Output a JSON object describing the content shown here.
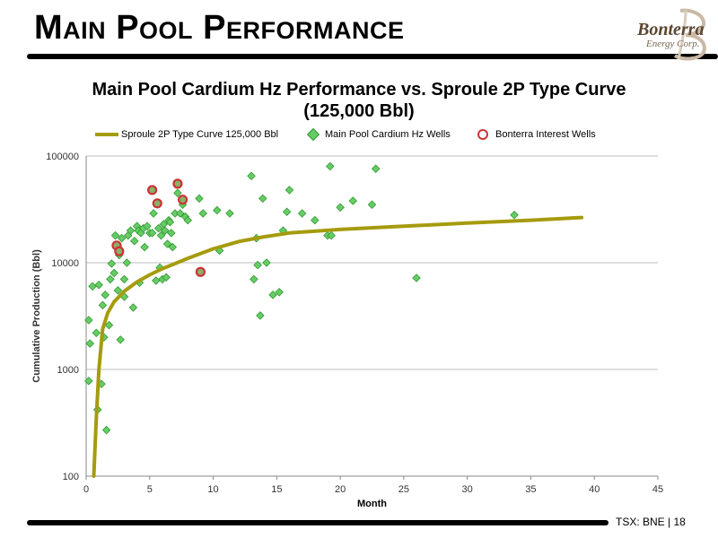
{
  "slide": {
    "title": "Main Pool Performance",
    "logo_word": "Bonterra",
    "logo_sub": "Energy Corp.",
    "footer_ticker": "TSX: BNE",
    "footer_sep": "|",
    "page_number": "18"
  },
  "chart_data": {
    "type": "scatter",
    "title": "Main Pool Cardium Hz Performance vs. Sproule 2P Type Curve (125,000 Bbl)",
    "xlabel": "Month",
    "ylabel": "Cumulative Production (Bbl)",
    "xlim": [
      0,
      45
    ],
    "ylim": [
      100,
      100000
    ],
    "y_scale": "log",
    "x_ticks": [
      0,
      5,
      10,
      15,
      20,
      25,
      30,
      35,
      40,
      45
    ],
    "y_ticks": [
      100,
      1000,
      10000,
      100000
    ],
    "grid": "horizontal",
    "legend_position": "top",
    "colors": {
      "type_curve": "#a59b0e",
      "wells_fill": "#66cc66",
      "wells_edge": "#339933",
      "interest_edge": "#cc3333",
      "interest_fill": "#8ab06a"
    },
    "series": [
      {
        "name": "Sproule 2P Type Curve 125,000 Bbl",
        "kind": "line",
        "x": [
          0.6,
          0.8,
          1.0,
          1.3,
          1.7,
          2.2,
          3,
          4,
          5,
          6,
          7,
          8,
          10,
          12,
          14,
          16,
          20,
          25,
          30,
          35,
          39
        ],
        "y": [
          100,
          350,
          1000,
          2400,
          3400,
          4300,
          5400,
          6600,
          7700,
          8800,
          9800,
          11000,
          13500,
          15800,
          17500,
          19000,
          20500,
          22000,
          23500,
          25000,
          26500
        ]
      },
      {
        "name": "Main Pool Cardium Hz Wells",
        "kind": "scatter",
        "x": [
          0.2,
          0.2,
          0.3,
          0.5,
          0.8,
          0.9,
          1.0,
          1.2,
          1.3,
          1.4,
          1.5,
          1.6,
          1.8,
          1.9,
          2.0,
          2.2,
          2.3,
          2.5,
          2.6,
          2.7,
          2.8,
          3.0,
          3.0,
          3.2,
          3.3,
          3.5,
          3.7,
          3.8,
          4.0,
          4.1,
          4.2,
          4.3,
          4.5,
          4.6,
          4.8,
          5.0,
          5.2,
          5.3,
          5.5,
          5.7,
          5.8,
          5.9,
          6.0,
          6.1,
          6.2,
          6.3,
          6.4,
          6.5,
          6.6,
          6.7,
          6.8,
          7.0,
          7.2,
          7.4,
          7.6,
          7.8,
          8.0,
          8.9,
          9.2,
          10.3,
          10.5,
          11.3,
          13.0,
          13.2,
          13.4,
          13.5,
          13.7,
          13.9,
          14.2,
          14.7,
          15.2,
          15.5,
          15.8,
          16.0,
          17.0,
          18.0,
          19.0,
          19.2,
          19.3,
          20.0,
          21.0,
          22.5,
          22.8,
          26.0,
          33.7
        ],
        "y": [
          2900,
          780,
          1750,
          6000,
          2200,
          420,
          6200,
          730,
          4000,
          2000,
          5000,
          270,
          2600,
          7000,
          9800,
          8000,
          18000,
          5500,
          11800,
          1900,
          17000,
          7000,
          4800,
          10000,
          18000,
          20000,
          3800,
          16000,
          22000,
          20000,
          6500,
          19000,
          21000,
          14000,
          22000,
          19000,
          19000,
          29000,
          6800,
          21000,
          9000,
          18000,
          7000,
          23000,
          20000,
          7300,
          15000,
          25000,
          24000,
          19000,
          14000,
          29000,
          45000,
          29000,
          35000,
          27000,
          25000,
          40000,
          29000,
          31000,
          13000,
          29000,
          65000,
          7000,
          17000,
          9500,
          3200,
          40000,
          10000,
          5000,
          5300,
          20000,
          30000,
          48000,
          29000,
          25000,
          18000,
          80000,
          18000,
          33000,
          38000,
          35000,
          76000,
          7200,
          28000
        ]
      },
      {
        "name": "Bonterra Interest Wells",
        "kind": "scatter",
        "x": [
          2.4,
          2.6,
          5.2,
          5.6,
          7.2,
          7.6,
          9.0
        ],
        "y": [
          14500,
          12800,
          48000,
          36000,
          55000,
          39000,
          8200
        ]
      }
    ]
  }
}
